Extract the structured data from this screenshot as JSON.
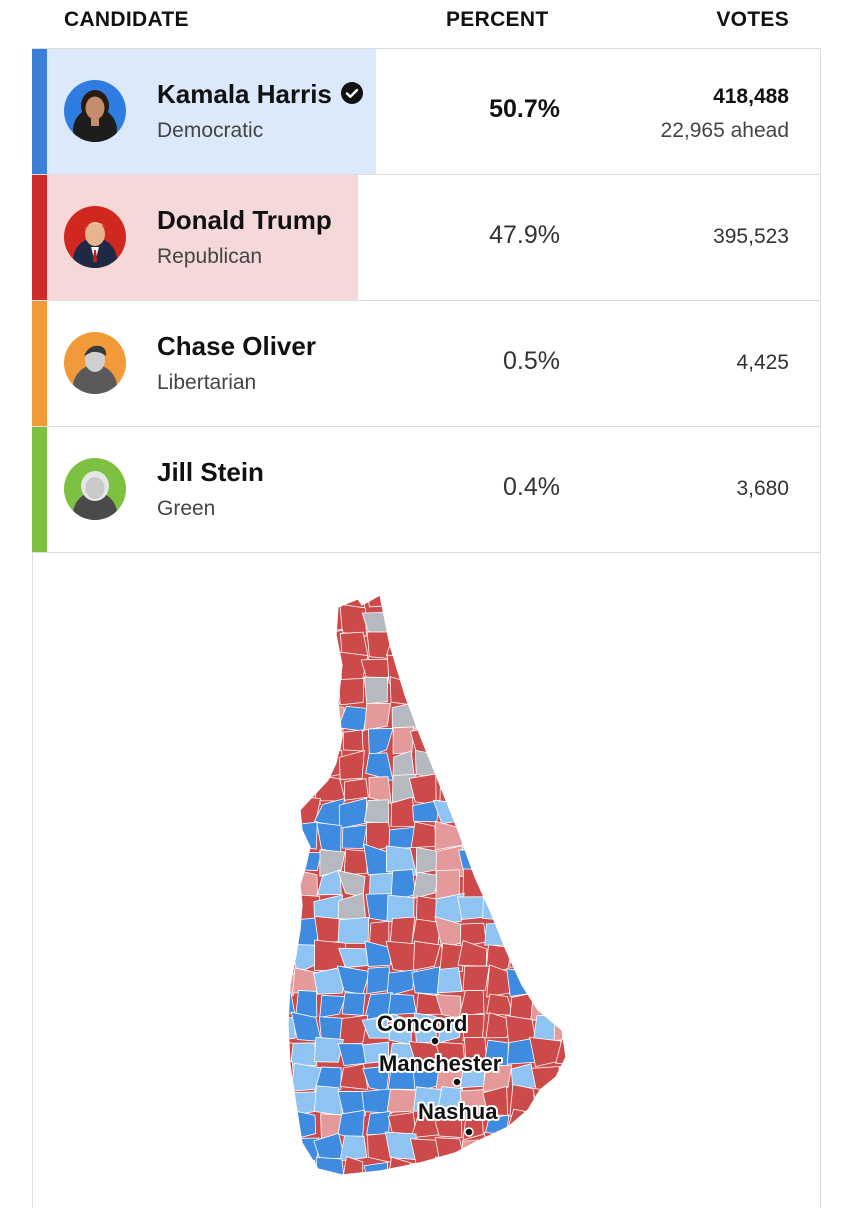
{
  "header": {
    "candidate_label": "CANDIDATE",
    "percent_label": "PERCENT",
    "votes_label": "VOTES"
  },
  "candidates": [
    {
      "name": "Kamala Harris",
      "party": "Democratic",
      "percent": "50.7%",
      "votes": "418,488",
      "ahead": "22,965 ahead",
      "winner": true,
      "percent_value": 50.7,
      "bar_color": "#3b7fd9",
      "fill_color": "#dbe9fa",
      "avatar_bg": "#2f7de1",
      "avatar_icon": "portrait-icon"
    },
    {
      "name": "Donald Trump",
      "party": "Republican",
      "percent": "47.9%",
      "votes": "395,523",
      "winner": false,
      "percent_value": 47.9,
      "bar_color": "#cc2c2c",
      "fill_color": "#f5d8d8",
      "avatar_bg": "#d0281f",
      "avatar_icon": "portrait-icon"
    },
    {
      "name": "Chase Oliver",
      "party": "Libertarian",
      "percent": "0.5%",
      "votes": "4,425",
      "winner": false,
      "percent_value": 0.5,
      "bar_color": "#f29a3a",
      "fill_color": "#ffffff",
      "avatar_bg": "#f29a3a",
      "avatar_icon": "portrait-icon"
    },
    {
      "name": "Jill Stein",
      "party": "Green",
      "percent": "0.4%",
      "votes": "3,680",
      "winner": false,
      "percent_value": 0.4,
      "bar_color": "#7cc13f",
      "fill_color": "#ffffff",
      "avatar_bg": "#7cc13f",
      "avatar_icon": "portrait-icon"
    }
  ],
  "map": {
    "region_icon": "new-hampshire-map",
    "colors": {
      "dem_strong": "#3f8be0",
      "dem_lean": "#8ec3f2",
      "rep_strong": "#cc4a4a",
      "rep_lean": "#e49a9a",
      "no_results": "#b7b9c0"
    },
    "cities": [
      {
        "name": "Concord"
      },
      {
        "name": "Manchester"
      },
      {
        "name": "Nashua"
      }
    ]
  }
}
